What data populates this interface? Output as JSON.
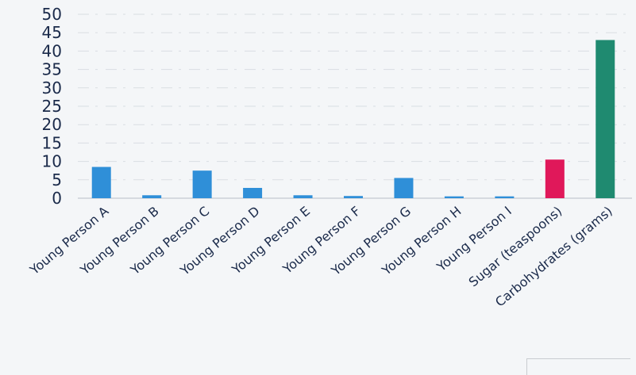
{
  "chart_data": {
    "type": "bar",
    "categories": [
      "Young Person A",
      "Young Person B",
      "Young Person C",
      "Young Person D",
      "Young Person E",
      "Young Person F",
      "Young Person G",
      "Young Person H",
      "Young Person I",
      "Sugar (teaspoons)",
      "Carbohydrates (grams)"
    ],
    "values": [
      8.5,
      0.8,
      7.5,
      2.8,
      0.8,
      0.6,
      5.5,
      0.5,
      0.5,
      10.5,
      43
    ],
    "bar_colors": [
      "#2f8fd8",
      "#2f8fd8",
      "#2f8fd8",
      "#2f8fd8",
      "#2f8fd8",
      "#2f8fd8",
      "#2f8fd8",
      "#2f8fd8",
      "#2f8fd8",
      "#e0185a",
      "#1f8a70"
    ],
    "ylim": [
      0,
      50
    ],
    "yticks": [
      "0",
      "5",
      "10",
      "15",
      "20",
      "25",
      "30",
      "35",
      "40",
      "45",
      "50"
    ],
    "grid": true,
    "title": "",
    "xlabel": "",
    "ylabel": ""
  }
}
